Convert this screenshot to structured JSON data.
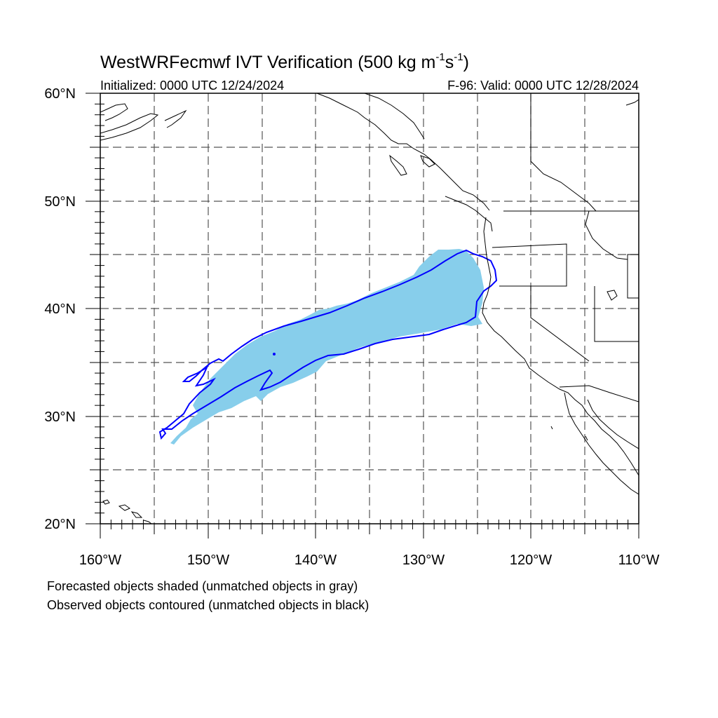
{
  "title": {
    "main": "WestWRFecmwf IVT Verification (500 kg m",
    "exp1": "-1",
    "mid": "s",
    "exp2": "-1",
    "end": ")"
  },
  "header": {
    "initialized": "Initialized: 0000 UTC 12/24/2024",
    "valid": "F-96: Valid: 0000 UTC 12/28/2024"
  },
  "axes": {
    "lat_labels": [
      "60°N",
      "50°N",
      "40°N",
      "30°N",
      "20°N"
    ],
    "lon_labels": [
      "160°W",
      "150°W",
      "140°W",
      "130°W",
      "120°W",
      "110°W"
    ],
    "lat_range": [
      20,
      60
    ],
    "lon_range": [
      -160,
      -110
    ]
  },
  "footer": {
    "line1": "Forecasted objects shaded (unmatched objects in gray)",
    "line2": "Observed objects contoured (unmatched objects in black)"
  },
  "colors": {
    "forecast_fill": "#87ceeb",
    "observed_contour": "#0000ff",
    "grid": "#555555",
    "coast": "#000000"
  }
}
